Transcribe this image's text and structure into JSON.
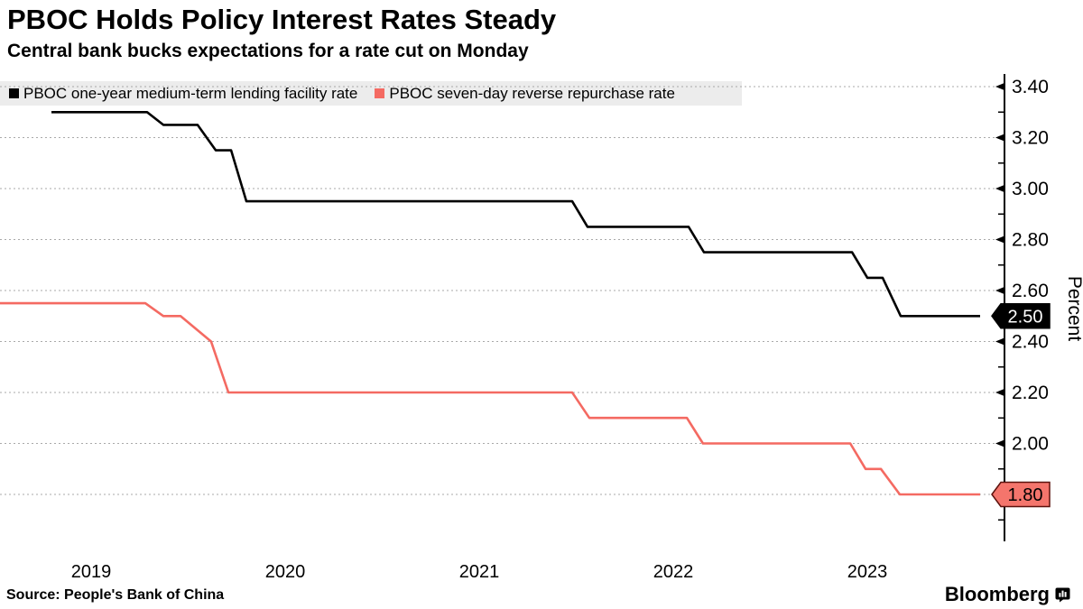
{
  "header": {
    "title": "PBOC Holds Policy Interest Rates Steady",
    "subtitle": "Central bank bucks expectations for a rate cut on Monday"
  },
  "legend": {
    "items": [
      {
        "label": "PBOC one-year medium-term lending facility rate",
        "color": "#000000"
      },
      {
        "label": "PBOC seven-day reverse repurchase rate",
        "color": "#f46a62"
      }
    ]
  },
  "chart_data": {
    "type": "line",
    "title": "PBOC Holds Policy Interest Rates Steady",
    "subtitle": "Central bank bucks expectations for a rate cut on Monday",
    "xlabel": "",
    "ylabel": "Percent",
    "x_axis": {
      "tick_years": [
        "2019",
        "2020",
        "2021",
        "2022",
        "2023"
      ]
    },
    "y_axis": {
      "tick_values": [
        3.4,
        3.2,
        3.0,
        2.8,
        2.6,
        2.4,
        2.2,
        2.0
      ],
      "tick_labels": [
        "3.40",
        "3.20",
        "3.00",
        "2.80",
        "2.60",
        "2.40",
        "2.20",
        "2.00"
      ],
      "minor_tick_values": [
        3.3,
        3.1,
        2.9,
        2.7,
        2.5,
        2.3,
        2.1,
        1.9,
        1.7
      ],
      "unit": "Percent"
    },
    "grid": "dashed-horizontal",
    "legend_position": "top",
    "series": [
      {
        "name": "PBOC one-year medium-term lending facility rate",
        "color": "#000000",
        "line_width": 2.6,
        "current_value": 2.5,
        "badge": {
          "label": "2.50",
          "bg": "#000000",
          "text_color": "#ffffff",
          "border": "#000000"
        },
        "points": [
          [
            2019.295,
            3.3
          ],
          [
            2019.788,
            3.3
          ],
          [
            2019.872,
            3.25
          ],
          [
            2020.048,
            3.25
          ],
          [
            2020.142,
            3.15
          ],
          [
            2020.221,
            3.15
          ],
          [
            2020.3,
            2.95
          ],
          [
            2021.979,
            2.95
          ],
          [
            2022.058,
            2.85
          ],
          [
            2022.579,
            2.85
          ],
          [
            2022.658,
            2.75
          ],
          [
            2023.421,
            2.75
          ],
          [
            2023.5,
            2.65
          ],
          [
            2023.579,
            2.65
          ],
          [
            2023.672,
            2.5
          ],
          [
            2024.081,
            2.5
          ]
        ]
      },
      {
        "name": "PBOC seven-day reverse repurchase rate",
        "color": "#f46a62",
        "line_width": 2.6,
        "current_value": 1.8,
        "badge": {
          "label": "1.80",
          "bg": "#f4756c",
          "text_color": "#000000",
          "border": "#5c120d"
        },
        "points": [
          [
            2019.03,
            2.55
          ],
          [
            2019.779,
            2.55
          ],
          [
            2019.872,
            2.5
          ],
          [
            2019.96,
            2.5
          ],
          [
            2020.118,
            2.4
          ],
          [
            2020.207,
            2.2
          ],
          [
            2021.979,
            2.2
          ],
          [
            2022.067,
            2.1
          ],
          [
            2022.57,
            2.1
          ],
          [
            2022.653,
            2.0
          ],
          [
            2023.412,
            2.0
          ],
          [
            2023.491,
            1.9
          ],
          [
            2023.57,
            1.9
          ],
          [
            2023.667,
            1.8
          ],
          [
            2024.081,
            1.8
          ]
        ]
      }
    ]
  },
  "footer": {
    "source": "Source: People's Bank of China",
    "brand": "Bloomberg"
  }
}
